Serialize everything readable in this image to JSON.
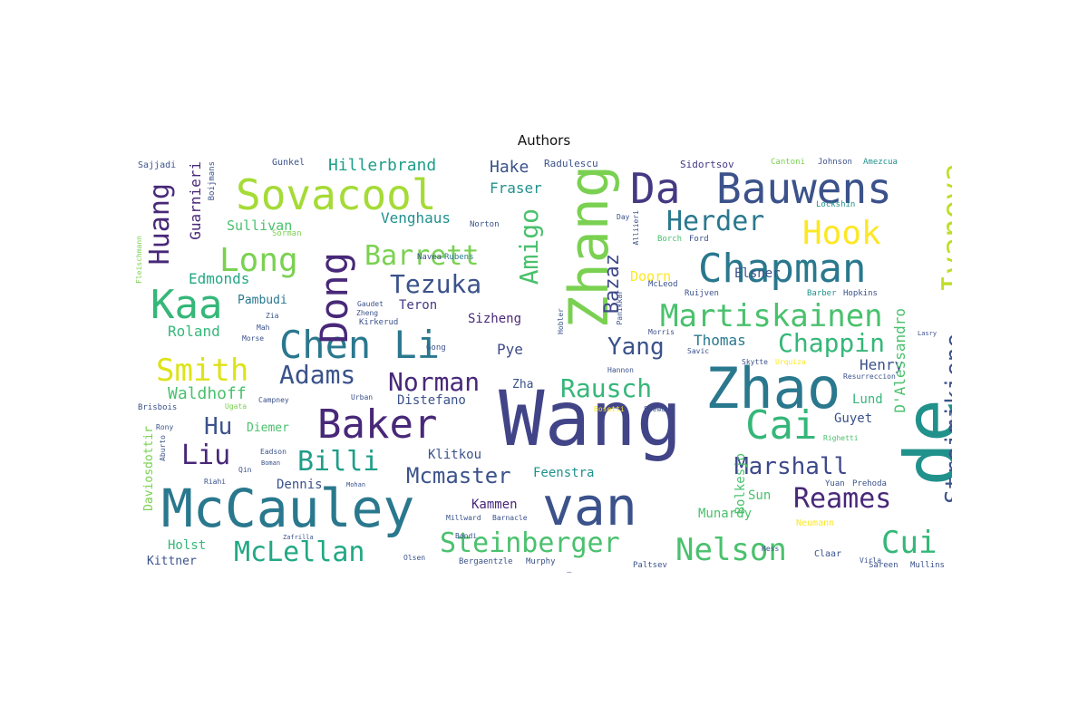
{
  "title": "Authors",
  "words": [
    {
      "text": "Wang",
      "color": "#414487"
    },
    {
      "text": "Zhang",
      "color": "#7ad151"
    },
    {
      "text": "Zhao",
      "color": "#2a788e"
    },
    {
      "text": "de",
      "color": "#21918c"
    },
    {
      "text": "van",
      "color": "#3b528b"
    },
    {
      "text": "McCauley",
      "color": "#2a788e"
    },
    {
      "text": "Baker",
      "color": "#482878"
    },
    {
      "text": "Sovacool",
      "color": "#a5db36"
    },
    {
      "text": "Bauwens",
      "color": "#3b528b"
    },
    {
      "text": "Da",
      "color": "#443983"
    },
    {
      "text": "Chapman",
      "color": "#2a788e"
    },
    {
      "text": "Chen Li",
      "color": "#2a788e"
    },
    {
      "text": "Dong",
      "color": "#482878"
    },
    {
      "text": "Kaa",
      "color": "#35b779"
    },
    {
      "text": "Cai",
      "color": "#35b779"
    },
    {
      "text": "Ivanova",
      "color": "#bddf26"
    },
    {
      "text": "Streimikiene",
      "color": "#3b528b"
    },
    {
      "text": "Hook",
      "color": "#fde725"
    },
    {
      "text": "Herder",
      "color": "#2a788e"
    },
    {
      "text": "Martiskainen",
      "color": "#4ac16d"
    },
    {
      "text": "Nelson",
      "color": "#4ac16d"
    },
    {
      "text": "Steinberger",
      "color": "#4ac16d"
    },
    {
      "text": "Smith",
      "color": "#dde318"
    },
    {
      "text": "Long",
      "color": "#7ad151"
    },
    {
      "text": "Barrett",
      "color": "#7ad151"
    },
    {
      "text": "Tezuka",
      "color": "#3b528b"
    },
    {
      "text": "Amigo",
      "color": "#4ac16d"
    },
    {
      "text": "Adams",
      "color": "#3b528b"
    },
    {
      "text": "Norman",
      "color": "#482878"
    },
    {
      "text": "Rausch",
      "color": "#35b779"
    },
    {
      "text": "Reames",
      "color": "#482878"
    },
    {
      "text": "Marshall",
      "color": "#3e4989"
    },
    {
      "text": "Billi",
      "color": "#1f9e89"
    },
    {
      "text": "McLellan",
      "color": "#22a884"
    },
    {
      "text": "Mcmaster",
      "color": "#3b528b"
    },
    {
      "text": "Cui",
      "color": "#35b779"
    },
    {
      "text": "Huang",
      "color": "#482878"
    },
    {
      "text": "Liu",
      "color": "#482878"
    },
    {
      "text": "Hu",
      "color": "#3b528b"
    },
    {
      "text": "Chappin",
      "color": "#35b779"
    },
    {
      "text": "Yang",
      "color": "#3b528b"
    },
    {
      "text": "Bazaz",
      "color": "#3e4989"
    },
    {
      "text": "Hillerbrand",
      "color": "#1f9e89"
    },
    {
      "text": "Waldhoff",
      "color": "#4ac16d"
    },
    {
      "text": "Roland",
      "color": "#35b779"
    },
    {
      "text": "Edmonds",
      "color": "#22a884"
    },
    {
      "text": "Guarnieri",
      "color": "#482878"
    },
    {
      "text": "Venghaus",
      "color": "#21918c"
    },
    {
      "text": "Hake",
      "color": "#3b528b"
    },
    {
      "text": "Fraser",
      "color": "#21918c"
    },
    {
      "text": "Sullivan",
      "color": "#4ac16d"
    },
    {
      "text": "Pambudi",
      "color": "#2a788e"
    },
    {
      "text": "Teron",
      "color": "#443983"
    },
    {
      "text": "Sizheng",
      "color": "#482878"
    },
    {
      "text": "Pye",
      "color": "#3e4989"
    },
    {
      "text": "Zha",
      "color": "#3b528b"
    },
    {
      "text": "Distefano",
      "color": "#3b528b"
    },
    {
      "text": "Klitkou",
      "color": "#3b528b"
    },
    {
      "text": "Feenstra",
      "color": "#21918c"
    },
    {
      "text": "Kammen",
      "color": "#482878"
    },
    {
      "text": "Thomas",
      "color": "#2a788e"
    },
    {
      "text": "Henry",
      "color": "#3b528b"
    },
    {
      "text": "D'Alessandro",
      "color": "#4ac16d"
    },
    {
      "text": "Elsner",
      "color": "#3b528b"
    },
    {
      "text": "Doorn",
      "color": "#fde725"
    },
    {
      "text": "Lund",
      "color": "#35b779"
    },
    {
      "text": "Guyet",
      "color": "#3b528b"
    },
    {
      "text": "Bolkesjo",
      "color": "#4ac16d"
    },
    {
      "text": "Sun",
      "color": "#4ac16d"
    },
    {
      "text": "Munardy",
      "color": "#4ac16d"
    },
    {
      "text": "Diemer",
      "color": "#4ac16d"
    },
    {
      "text": "Dennis",
      "color": "#3b528b"
    },
    {
      "text": "Holst",
      "color": "#35b779"
    },
    {
      "text": "Kittner",
      "color": "#3b528b"
    },
    {
      "text": "Daviosdottir",
      "color": "#7ad151"
    },
    {
      "text": "Radulescu",
      "color": "#3b528b"
    },
    {
      "text": "Sidortsov",
      "color": "#443983"
    },
    {
      "text": "Gunkel",
      "color": "#3b528b"
    },
    {
      "text": "Sajjadi",
      "color": "#3b528b"
    },
    {
      "text": "Boijmans",
      "color": "#3b528b"
    },
    {
      "text": "Cantoni",
      "color": "#7ad151"
    },
    {
      "text": "Johnson",
      "color": "#3b528b"
    },
    {
      "text": "Amezcua",
      "color": "#21918c"
    },
    {
      "text": "Lockshin",
      "color": "#21918c"
    },
    {
      "text": "Borch",
      "color": "#4ac16d"
    },
    {
      "text": "Ford",
      "color": "#3b528b"
    },
    {
      "text": "McLeod",
      "color": "#3b528b"
    },
    {
      "text": "Ruijven",
      "color": "#3b528b"
    },
    {
      "text": "Barber",
      "color": "#21918c"
    },
    {
      "text": "Hopkins",
      "color": "#3b528b"
    },
    {
      "text": "Norton",
      "color": "#3b528b"
    },
    {
      "text": "Rubens",
      "color": "#2a788e"
    },
    {
      "text": "Navea",
      "color": "#3b528b"
    },
    {
      "text": "Sorman",
      "color": "#7ad151"
    },
    {
      "text": "Zheng",
      "color": "#3b528b"
    },
    {
      "text": "Gaudet",
      "color": "#3b528b"
    },
    {
      "text": "Zia",
      "color": "#3b528b"
    },
    {
      "text": "Mah",
      "color": "#3b528b"
    },
    {
      "text": "Morse",
      "color": "#3b528b"
    },
    {
      "text": "Kirkerud",
      "color": "#3b528b"
    },
    {
      "text": "Gong",
      "color": "#3b528b"
    },
    {
      "text": "Hobler",
      "color": "#3b528b"
    },
    {
      "text": "Panikkar",
      "color": "#3b528b"
    },
    {
      "text": "Morris",
      "color": "#3b528b"
    },
    {
      "text": "Savic",
      "color": "#3b528b"
    },
    {
      "text": "Skytte",
      "color": "#3b528b"
    },
    {
      "text": "Urquiza",
      "color": "#fde725"
    },
    {
      "text": "Resurreccion",
      "color": "#3b528b"
    },
    {
      "text": "Hannon",
      "color": "#3b528b"
    },
    {
      "text": "Stewart",
      "color": "#3b528b"
    },
    {
      "text": "Bosetti",
      "color": "#fde725"
    },
    {
      "text": "Urban",
      "color": "#3b528b"
    },
    {
      "text": "Ugata",
      "color": "#7ad151"
    },
    {
      "text": "Campney",
      "color": "#3b528b"
    },
    {
      "text": "Brisbois",
      "color": "#3b528b"
    },
    {
      "text": "Rony",
      "color": "#3b528b"
    },
    {
      "text": "Eadson",
      "color": "#3b528b"
    },
    {
      "text": "Qin",
      "color": "#3b528b"
    },
    {
      "text": "Riahi",
      "color": "#3b528b"
    },
    {
      "text": "Boman",
      "color": "#3b528b"
    },
    {
      "text": "Mohan",
      "color": "#3b528b"
    },
    {
      "text": "Zafrilla",
      "color": "#3b528b"
    },
    {
      "text": "Olsen",
      "color": "#3b528b"
    },
    {
      "text": "Bergaentzle",
      "color": "#3b528b"
    },
    {
      "text": "Murphy",
      "color": "#3b528b"
    },
    {
      "text": "Tan",
      "color": "#3b528b"
    },
    {
      "text": "Paltsev",
      "color": "#3b528b"
    },
    {
      "text": "Millward",
      "color": "#3b528b"
    },
    {
      "text": "Barnacle",
      "color": "#3b528b"
    },
    {
      "text": "Bondi",
      "color": "#3b528b"
    },
    {
      "text": "Neumann",
      "color": "#fde725"
    },
    {
      "text": "Hess",
      "color": "#3b528b"
    },
    {
      "text": "Yuan",
      "color": "#3b528b"
    },
    {
      "text": "Prehoda",
      "color": "#3b528b"
    },
    {
      "text": "Virla",
      "color": "#3b528b"
    },
    {
      "text": "Claar",
      "color": "#3b528b"
    },
    {
      "text": "Sareen",
      "color": "#3b528b"
    },
    {
      "text": "Mullins",
      "color": "#3b528b"
    },
    {
      "text": "Righetti",
      "color": "#4ac16d"
    },
    {
      "text": "Fleischmann",
      "color": "#7ad151"
    },
    {
      "text": "Aburto",
      "color": "#3b528b"
    },
    {
      "text": "Lasry",
      "color": "#3b528b"
    },
    {
      "text": "Day",
      "color": "#3b528b"
    },
    {
      "text": "Alliieri",
      "color": "#3b528b"
    }
  ]
}
